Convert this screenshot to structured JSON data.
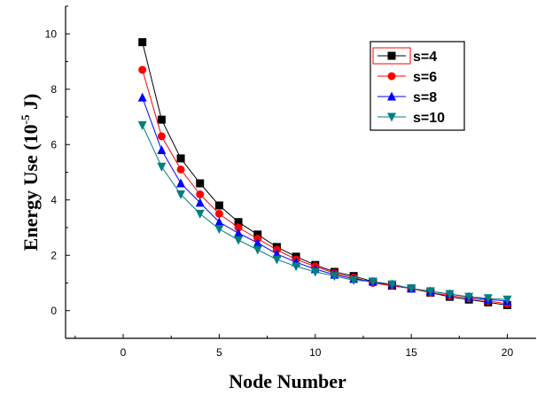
{
  "chart_data": {
    "type": "line",
    "xlabel": "Node Number",
    "ylabel_main": "Energy Use (10",
    "ylabel_sup": "-5",
    "ylabel_end": " J)",
    "xlim": [
      -3,
      21.5
    ],
    "ylim": [
      -1,
      11
    ],
    "xticks": [
      0,
      5,
      10,
      15,
      20
    ],
    "yticks": [
      0,
      2,
      4,
      6,
      8,
      10
    ],
    "legend_position": "top-right",
    "x": [
      1,
      2,
      3,
      4,
      5,
      6,
      7,
      8,
      9,
      10,
      11,
      12,
      13,
      14,
      15,
      16,
      17,
      18,
      19,
      20
    ],
    "series": [
      {
        "name": "s=4",
        "color": "#000000",
        "marker": "square",
        "values": [
          9.7,
          6.9,
          5.5,
          4.6,
          3.8,
          3.2,
          2.75,
          2.3,
          1.95,
          1.65,
          1.4,
          1.25,
          1.05,
          0.9,
          0.8,
          0.65,
          0.5,
          0.4,
          0.3,
          0.2
        ]
      },
      {
        "name": "s=6",
        "color": "#ff0000",
        "marker": "circle",
        "values": [
          8.7,
          6.3,
          5.1,
          4.2,
          3.5,
          3.0,
          2.6,
          2.2,
          1.85,
          1.6,
          1.35,
          1.2,
          1.0,
          0.9,
          0.8,
          0.65,
          0.55,
          0.45,
          0.35,
          0.25
        ]
      },
      {
        "name": "s=8",
        "color": "#0000ff",
        "marker": "triangle-up",
        "values": [
          7.7,
          5.8,
          4.6,
          3.9,
          3.2,
          2.8,
          2.45,
          2.05,
          1.75,
          1.5,
          1.3,
          1.15,
          1.05,
          0.95,
          0.8,
          0.7,
          0.6,
          0.5,
          0.4,
          0.35
        ]
      },
      {
        "name": "s=10",
        "color": "#008080",
        "marker": "triangle-down",
        "values": [
          6.7,
          5.2,
          4.2,
          3.5,
          2.95,
          2.55,
          2.2,
          1.85,
          1.6,
          1.4,
          1.25,
          1.1,
          1.05,
          0.95,
          0.8,
          0.7,
          0.6,
          0.5,
          0.45,
          0.4
        ]
      }
    ]
  }
}
